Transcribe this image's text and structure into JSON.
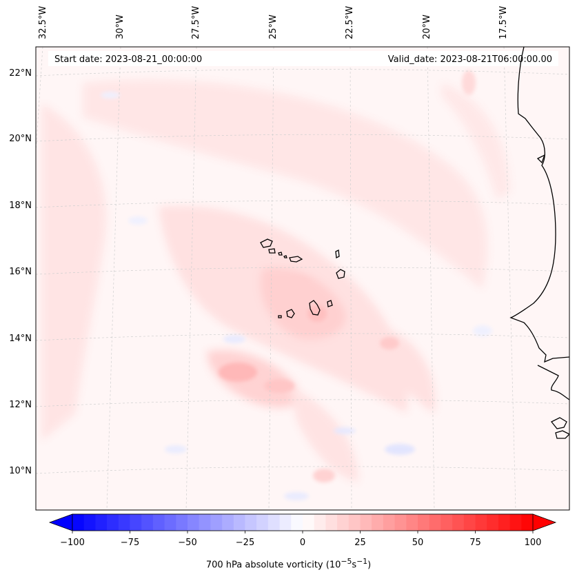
{
  "header": {
    "start_date": "Start date: 2023-08-21_00:00:00",
    "valid_date": "Valid_date: 2023-08-21T06:00:00.00"
  },
  "map": {
    "lon_labels": [
      "32.5°W",
      "30°W",
      "27.5°W",
      "25°W",
      "22.5°W",
      "20°W",
      "17.5°W"
    ],
    "lat_labels": [
      "22°N",
      "20°N",
      "18°N",
      "16°N",
      "14°N",
      "12°N",
      "10°N"
    ],
    "field": "700 hPa absolute vorticity",
    "colors": {
      "background": "#fff5f5",
      "light_pink": "#ffe3e3",
      "pink": "#ffd0d0",
      "strong_pink": "#ffb4b4",
      "light_blue": "#eef1ff",
      "coastline": "#000000",
      "gridline": "#c8c8c8"
    }
  },
  "colorbar": {
    "label_html": "700 hPa absolute vorticity (10<sup>−5</sup>s<sup>−1</sup>)",
    "ticks": [
      "−100",
      "−75",
      "−50",
      "−25",
      "0",
      "25",
      "50",
      "75",
      "100"
    ],
    "cmap": "bwr",
    "range": [
      -100,
      100
    ],
    "n_levels": 40
  }
}
